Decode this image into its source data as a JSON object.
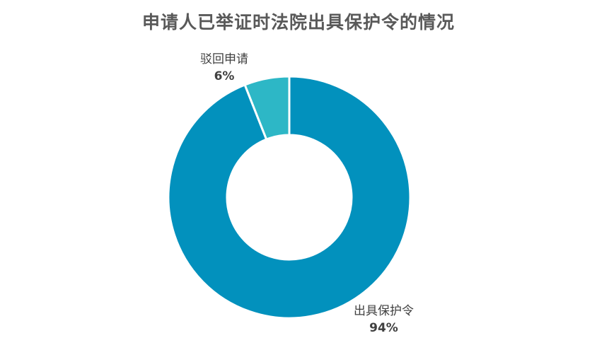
{
  "chart_data": {
    "type": "pie",
    "title": "申请人已举证时法院出具保护令的情况",
    "categories": [
      "驳回申请",
      "出具保护令"
    ],
    "values": [
      6,
      94
    ],
    "value_labels": [
      "6%",
      "94%"
    ],
    "colors": [
      "#2db7c6",
      "#0291bd"
    ],
    "legend": "none"
  }
}
